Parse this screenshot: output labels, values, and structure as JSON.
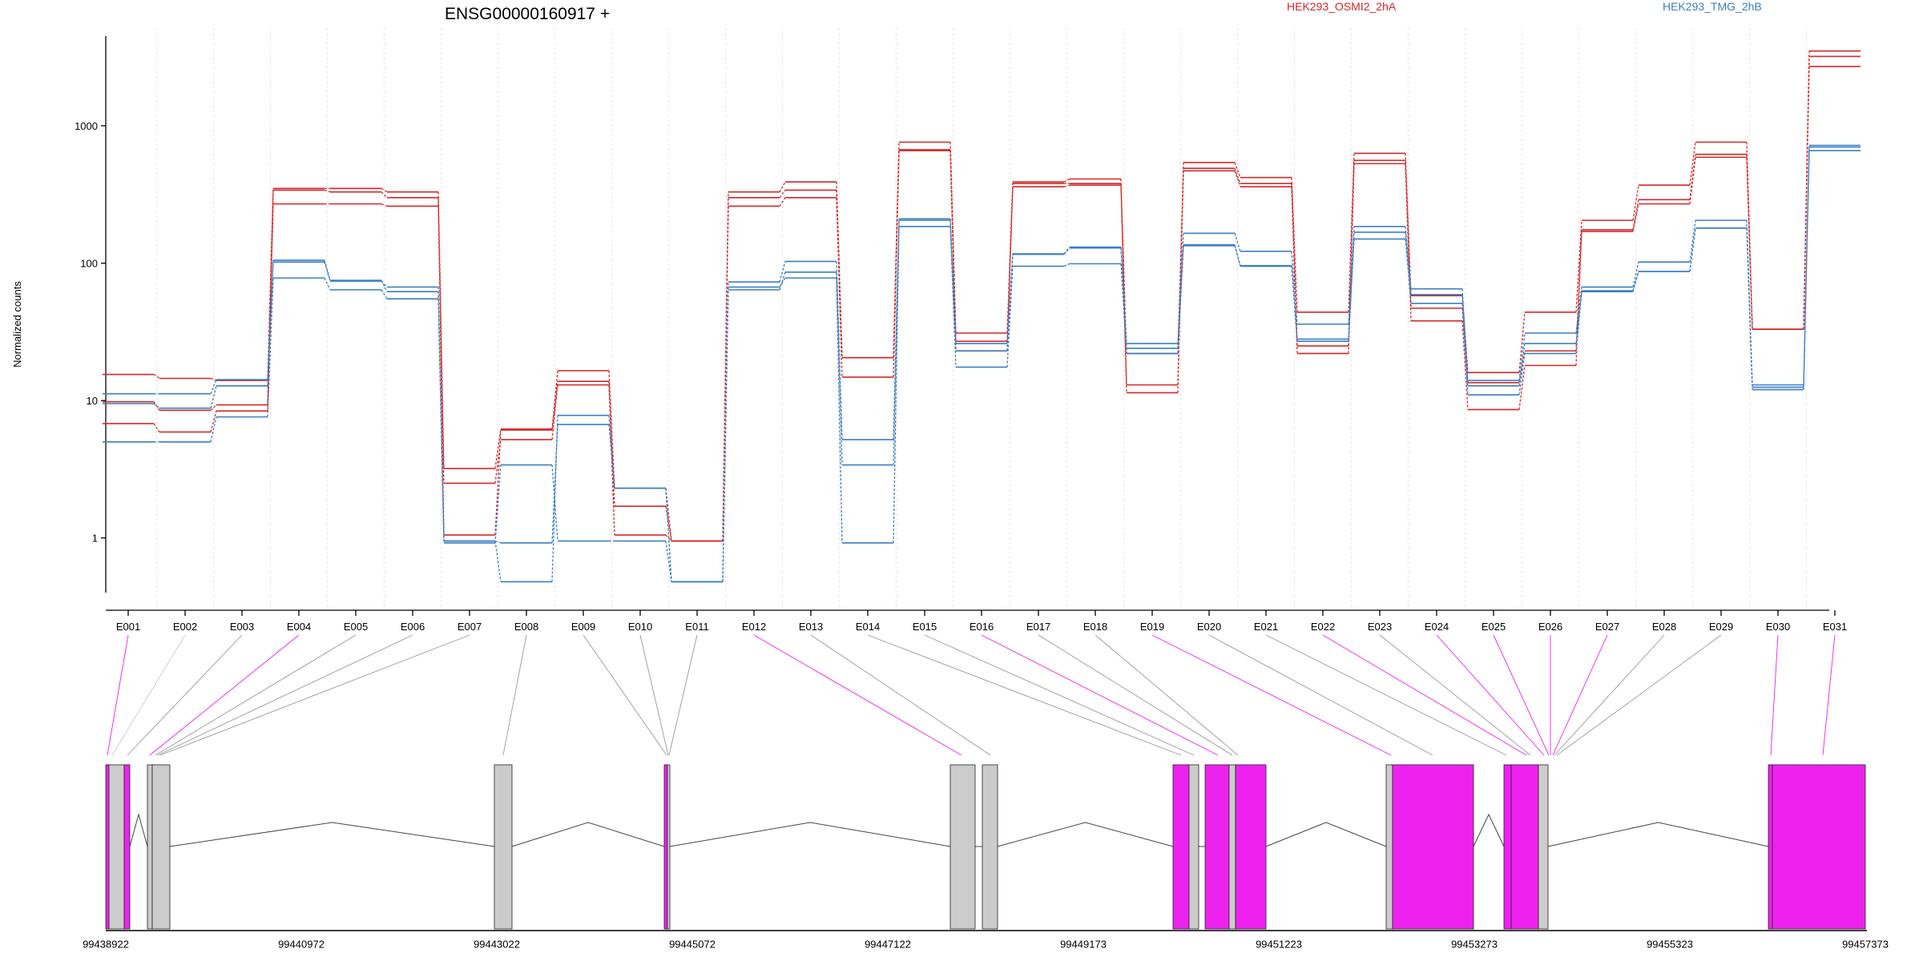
{
  "chart_data": {
    "type": "line",
    "title": "ENSG00000160917 +",
    "ylabel": "Normalized counts",
    "xlabel": "",
    "yscale": "log",
    "ylim": [
      0.4,
      4500
    ],
    "yticks": [
      "1",
      "10",
      "100",
      "1000"
    ],
    "categories": [
      "E001",
      "E002",
      "E003",
      "E004",
      "E005",
      "E006",
      "E007",
      "E008",
      "E009",
      "E010",
      "E011",
      "E012",
      "E013",
      "E014",
      "E015",
      "E016",
      "E017",
      "E018",
      "E019",
      "E020",
      "E021",
      "E022",
      "E023",
      "E024",
      "E025",
      "E026",
      "E027",
      "E028",
      "E029",
      "E030",
      "E031"
    ],
    "conditions": [
      {
        "name": "HEK293_OSMI2_2hA",
        "color": "#d62728"
      },
      {
        "name": "HEK293_TMG_2hB",
        "color": "#3c7fc1"
      }
    ],
    "series": [
      {
        "condition": 0,
        "values": [
          15.5,
          14.5,
          14.0,
          350,
          350,
          330,
          3.2,
          6.2,
          16.5,
          2.3,
          0.95,
          330,
          390,
          20.5,
          760,
          31,
          390,
          410,
          13.0,
          540,
          420,
          44,
          630,
          58,
          16,
          44,
          205,
          370,
          760,
          33,
          3500
        ]
      },
      {
        "condition": 0,
        "values": [
          9.8,
          8.5,
          9.3,
          270,
          270,
          260,
          2.5,
          5.2,
          13.0,
          1.7,
          0.95,
          260,
          300,
          14.8,
          660,
          23,
          360,
          370,
          11.4,
          470,
          360,
          22,
          530,
          38,
          8.6,
          18,
          170,
          270,
          590,
          33,
          2700
        ]
      },
      {
        "condition": 0,
        "values": [
          6.8,
          5.9,
          8.4,
          340,
          330,
          300,
          1.05,
          6.1,
          13.8,
          1.05,
          0.95,
          300,
          340,
          20.5,
          670,
          27,
          380,
          380,
          22,
          490,
          380,
          25,
          560,
          47,
          13.5,
          23,
          175,
          290,
          620,
          33,
          3200
        ]
      },
      {
        "condition": 1,
        "values": [
          11.2,
          11.2,
          14.2,
          102,
          74,
          67,
          0.95,
          0.48,
          7.8,
          2.3,
          0.48,
          73,
          103,
          5.2,
          205,
          26,
          116,
          129,
          26,
          165,
          122,
          36,
          185,
          65,
          14,
          31,
          67,
          102,
          205,
          13,
          720
        ]
      },
      {
        "condition": 1,
        "values": [
          9.5,
          8.8,
          12.8,
          105,
          75,
          62,
          0.95,
          0.92,
          6.7,
          2.3,
          0.48,
          64,
          86,
          3.4,
          210,
          23,
          117,
          131,
          24,
          134,
          96,
          28,
          168,
          59,
          12.8,
          26,
          63,
          87,
          180,
          12.5,
          700
        ]
      },
      {
        "condition": 1,
        "values": [
          5.0,
          5.0,
          7.6,
          78,
          64,
          55,
          0.92,
          3.4,
          0.95,
          0.95,
          0.48,
          67,
          78,
          0.92,
          185,
          17.5,
          95,
          99,
          22,
          136,
          95,
          27,
          150,
          51,
          11,
          22,
          62,
          87,
          180,
          12,
          660
        ]
      }
    ],
    "gene_model": {
      "coordinates": [
        "99438922",
        "99440972",
        "99443022",
        "99445072",
        "99447122",
        "99449173",
        "99451223",
        "99453273",
        "99455323",
        "99457373"
      ],
      "bin_colors": [
        "#ee22ee",
        "#cccccc",
        "#999999",
        "#ee22ee",
        "#999999",
        "#999999",
        "#999999",
        "#999999",
        "#999999",
        "#999999",
        "#999999",
        "#ee22ee",
        "#999999",
        "#999999",
        "#999999",
        "#ee22ee",
        "#999999",
        "#999999",
        "#ee22ee",
        "#999999",
        "#999999",
        "#ee22ee",
        "#999999",
        "#ee22ee",
        "#ee22ee",
        "#ee22ee",
        "#ee22ee",
        "#999999",
        "#999999",
        "#ee22ee",
        "#ee22ee"
      ]
    }
  }
}
